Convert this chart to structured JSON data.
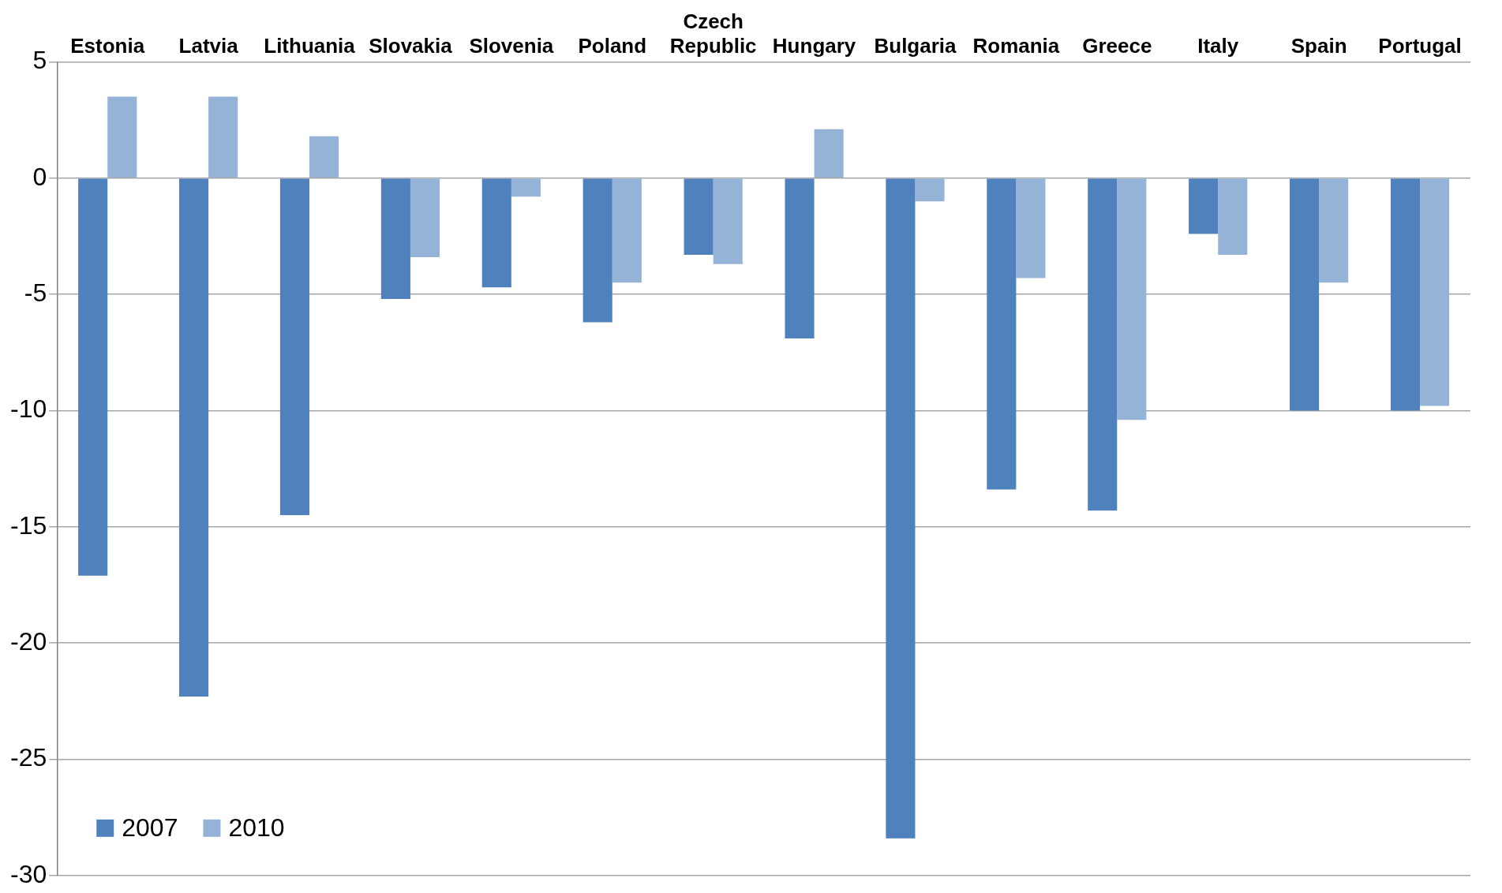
{
  "chart_data": {
    "type": "bar",
    "categories": [
      "Estonia",
      "Latvia",
      "Lithuania",
      "Slovakia",
      "Slovenia",
      "Poland",
      "Czech Republic",
      "Hungary",
      "Bulgaria",
      "Romania",
      "Greece",
      "Italy",
      "Spain",
      "Portugal"
    ],
    "series": [
      {
        "name": "2007",
        "color": "#4f81bd",
        "values": [
          -17.1,
          -22.3,
          -14.5,
          -5.2,
          -4.7,
          -6.2,
          -3.3,
          -6.9,
          -28.4,
          -13.4,
          -14.3,
          -2.4,
          -10.0,
          -10.0
        ]
      },
      {
        "name": "2010",
        "color": "#95b3d7",
        "values": [
          3.5,
          3.5,
          1.8,
          -3.4,
          -0.8,
          -4.5,
          -3.7,
          2.1,
          -1.0,
          -4.3,
          -10.4,
          -3.3,
          -4.5,
          -9.8
        ]
      }
    ],
    "ylim": [
      -30,
      5
    ],
    "yticks": [
      -30,
      -25,
      -20,
      -15,
      -10,
      -5,
      0,
      5
    ],
    "grid": "y",
    "legend": "bottom left"
  }
}
